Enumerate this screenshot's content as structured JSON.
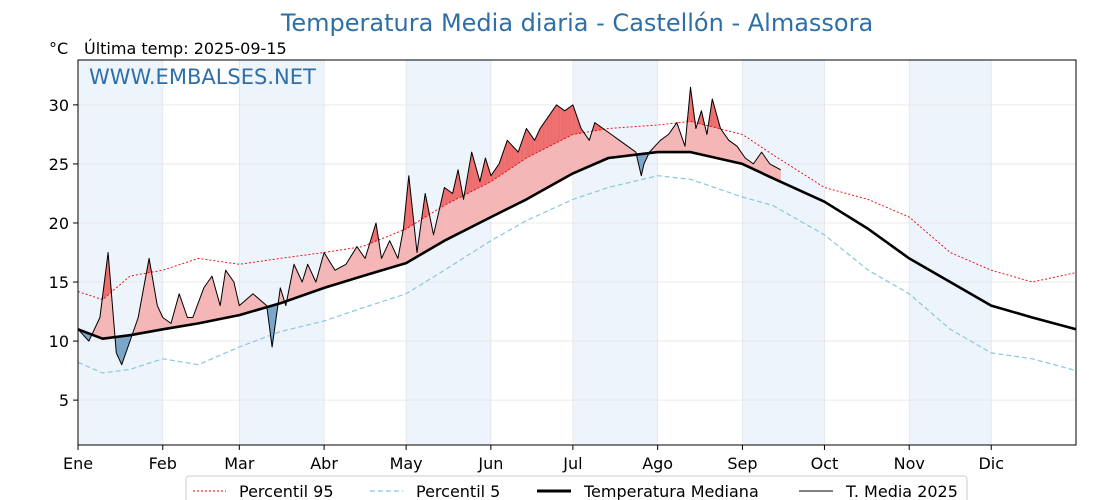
{
  "chart_data": {
    "type": "line",
    "title": "Temperatura Media diaria - Castellón - Almassora",
    "unit_label": "°C",
    "last_temp_label": "Última temp: 2025-09-15",
    "watermark": "WWW.EMBALSES.NET",
    "ylim": [
      1.2,
      33.8
    ],
    "yticks": [
      5,
      10,
      15,
      20,
      25,
      30
    ],
    "grid": true,
    "legend_position": "bottom-center",
    "months": [
      "Ene",
      "Feb",
      "Mar",
      "Abr",
      "May",
      "Jun",
      "Jul",
      "Ago",
      "Sep",
      "Oct",
      "Nov",
      "Dic"
    ],
    "month_start_days": [
      1,
      32,
      60,
      91,
      121,
      152,
      182,
      213,
      244,
      274,
      305,
      335
    ],
    "x_range_days": [
      1,
      366
    ],
    "colors": {
      "p95": "#e8000b",
      "p5": "#88c8df",
      "median": "#000000",
      "current": "#000000",
      "above_median": "#f4b6b6",
      "above_p95": "#ee6a6a",
      "below_median": "#7ba6c9",
      "band": "#eef4fb",
      "title": "#2f6fa8"
    },
    "series": [
      {
        "name": "Percentil 95",
        "x_day": [
          1,
          10,
          20,
          32,
          45,
          60,
          75,
          91,
          105,
          121,
          135,
          152,
          165,
          182,
          195,
          213,
          225,
          244,
          255,
          274,
          290,
          305,
          320,
          335,
          350,
          366
        ],
        "values": [
          14.2,
          13.5,
          15.5,
          16.0,
          17.0,
          16.5,
          17.0,
          17.5,
          18.0,
          19.5,
          21.5,
          23.5,
          25.5,
          27.5,
          28.0,
          28.3,
          28.6,
          27.5,
          25.8,
          23.0,
          22.0,
          20.5,
          17.5,
          16.0,
          15.0,
          15.8
        ]
      },
      {
        "name": "Percentil 5",
        "x_day": [
          1,
          10,
          20,
          32,
          45,
          60,
          75,
          91,
          105,
          121,
          135,
          152,
          165,
          182,
          195,
          213,
          225,
          244,
          255,
          274,
          290,
          305,
          320,
          335,
          350,
          366
        ],
        "values": [
          8.2,
          7.3,
          7.6,
          8.5,
          8.0,
          9.5,
          10.8,
          11.7,
          12.8,
          14.0,
          16.0,
          18.5,
          20.2,
          22.0,
          23.0,
          24.0,
          23.7,
          22.2,
          21.5,
          19.0,
          16.0,
          14.0,
          11.0,
          9.0,
          8.5,
          7.5
        ]
      },
      {
        "name": "Temperatura Mediana",
        "x_day": [
          1,
          10,
          20,
          32,
          45,
          60,
          75,
          91,
          105,
          121,
          135,
          152,
          165,
          182,
          195,
          213,
          225,
          244,
          255,
          274,
          290,
          305,
          320,
          335,
          350,
          366
        ],
        "values": [
          11.0,
          10.2,
          10.5,
          11.0,
          11.5,
          12.2,
          13.2,
          14.5,
          15.5,
          16.6,
          18.5,
          20.5,
          22.0,
          24.2,
          25.5,
          26.0,
          26.0,
          25.0,
          23.8,
          21.8,
          19.5,
          17.0,
          15.0,
          13.0,
          12.0,
          11.0
        ]
      },
      {
        "name": "T. Media 2025",
        "x_day": [
          1,
          5,
          9,
          12,
          15,
          17,
          20,
          23,
          27,
          30,
          32,
          35,
          38,
          41,
          43,
          47,
          50,
          53,
          55,
          58,
          60,
          65,
          70,
          72,
          75,
          77,
          80,
          83,
          85,
          88,
          91,
          95,
          99,
          103,
          106,
          110,
          112,
          115,
          118,
          120,
          122,
          125,
          128,
          131,
          135,
          138,
          140,
          142,
          145,
          148,
          150,
          152,
          155,
          158,
          162,
          165,
          168,
          170,
          173,
          176,
          179,
          182,
          185,
          188,
          190,
          193,
          196,
          199,
          202,
          205,
          207,
          208,
          210,
          212,
          214,
          217,
          220,
          223,
          225,
          227,
          229,
          231,
          233,
          236,
          239,
          242,
          245,
          248,
          251,
          254,
          258
        ],
        "values": [
          11.0,
          10.0,
          12.0,
          17.5,
          9.0,
          8.0,
          10.0,
          12.0,
          17.0,
          13.0,
          12.0,
          11.5,
          14.0,
          12.0,
          12.0,
          14.5,
          15.5,
          13.0,
          16.0,
          15.0,
          13.0,
          14.0,
          13.0,
          9.5,
          14.5,
          13.0,
          16.5,
          15.0,
          16.5,
          15.0,
          17.5,
          16.0,
          16.5,
          18.0,
          17.0,
          20.0,
          17.0,
          18.5,
          17.0,
          19.5,
          24.0,
          17.5,
          22.5,
          19.0,
          23.0,
          22.5,
          24.5,
          22.0,
          26.0,
          23.5,
          25.5,
          24.0,
          25.0,
          27.0,
          26.0,
          28.0,
          27.0,
          28.0,
          29.0,
          30.0,
          29.5,
          30.0,
          28.0,
          27.0,
          28.5,
          28.0,
          27.5,
          27.0,
          26.5,
          26.0,
          24.0,
          25.0,
          26.0,
          26.5,
          27.0,
          27.5,
          28.5,
          26.5,
          31.5,
          28.0,
          29.5,
          27.5,
          30.5,
          28.0,
          27.0,
          26.5,
          25.5,
          25.0,
          26.0,
          25.0,
          24.5
        ]
      }
    ]
  },
  "legend": {
    "items": [
      {
        "label": "Percentil 95"
      },
      {
        "label": "Percentil 5"
      },
      {
        "label": "Temperatura Mediana"
      },
      {
        "label": "T. Media 2025"
      }
    ]
  }
}
